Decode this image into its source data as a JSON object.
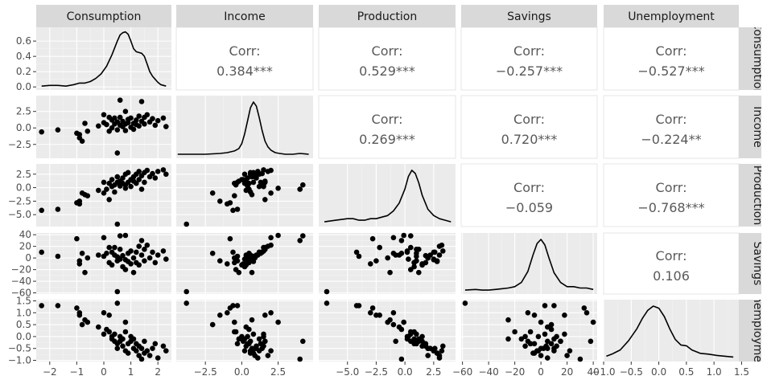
{
  "chart_data": {
    "type": "scatter-matrix",
    "variables": [
      "Consumption",
      "Income",
      "Production",
      "Savings",
      "Unemployment"
    ],
    "column_ranges": [
      [
        -2.5,
        2.5
      ],
      [
        -4.5,
        4.9
      ],
      [
        -7.5,
        4.4
      ],
      [
        -61,
        43
      ],
      [
        -1.0,
        1.45
      ]
    ],
    "row_ranges": [
      [
        -0.04,
        0.78
      ],
      [
        -4.6,
        4.9
      ],
      [
        -7.2,
        4.4
      ],
      [
        -62,
        43
      ],
      [
        -1.05,
        1.55
      ]
    ],
    "x_ticks": [
      {
        "values": [
          -2,
          -1,
          0,
          1,
          2
        ],
        "labels": [
          "−2",
          "−1",
          "0",
          "1",
          "2"
        ]
      },
      {
        "values": [
          -2.5,
          0,
          2.5
        ],
        "labels": [
          "−2.5",
          "0.0",
          "2.5"
        ]
      },
      {
        "values": [
          -5,
          -2.5,
          0,
          2.5
        ],
        "labels": [
          "−5.0",
          "−2.5",
          "0.0",
          "2.5"
        ]
      },
      {
        "values": [
          -60,
          -40,
          -20,
          0,
          20,
          40
        ],
        "labels": [
          "−60",
          "−40",
          "−20",
          "0",
          "20",
          "40"
        ]
      },
      {
        "values": [
          -1,
          -0.5,
          0,
          0.5,
          1,
          1.5
        ],
        "labels": [
          "−1.0",
          "−0.5",
          "0.0",
          "0.5",
          "1.0",
          "1.5"
        ]
      }
    ],
    "y_ticks": [
      {
        "values": [
          0,
          0.2,
          0.4,
          0.6
        ],
        "labels": [
          "0.0",
          "0.2",
          "0.4",
          "0.6"
        ]
      },
      {
        "values": [
          -2.5,
          0,
          2.5
        ],
        "labels": [
          "−2.5",
          "0.0",
          "2.5"
        ]
      },
      {
        "values": [
          -5,
          -2.5,
          0,
          2.5
        ],
        "labels": [
          "−5.0",
          "−2.5",
          "0.0",
          "2.5"
        ]
      },
      {
        "values": [
          -60,
          -40,
          -20,
          0,
          20,
          40
        ],
        "labels": [
          "−60",
          "−40",
          "−20",
          "0",
          "20",
          "40"
        ]
      },
      {
        "values": [
          -1,
          -0.5,
          0,
          0.5,
          1,
          1.5
        ],
        "labels": [
          "−1.0",
          "−0.5",
          "0.0",
          "0.5",
          "1.0",
          "1.5"
        ]
      }
    ],
    "correlations": [
      {
        "row": 0,
        "col": 1,
        "label": "Corr:",
        "value": "0.384***"
      },
      {
        "row": 0,
        "col": 2,
        "label": "Corr:",
        "value": "0.529***"
      },
      {
        "row": 0,
        "col": 3,
        "label": "Corr:",
        "value": "−0.257***"
      },
      {
        "row": 0,
        "col": 4,
        "label": "Corr:",
        "value": "−0.527***"
      },
      {
        "row": 1,
        "col": 2,
        "label": "Corr:",
        "value": "0.269***"
      },
      {
        "row": 1,
        "col": 3,
        "label": "Corr:",
        "value": "0.720***"
      },
      {
        "row": 1,
        "col": 4,
        "label": "Corr:",
        "value": "−0.224**"
      },
      {
        "row": 2,
        "col": 3,
        "label": "Corr:",
        "value": "−0.059"
      },
      {
        "row": 2,
        "col": 4,
        "label": "Corr:",
        "value": "−0.768***"
      },
      {
        "row": 3,
        "col": 4,
        "label": "Corr:",
        "value": "0.106"
      }
    ],
    "densities": [
      {
        "var": 0,
        "x": [
          -2.3,
          -2.0,
          -1.7,
          -1.4,
          -1.1,
          -0.9,
          -0.7,
          -0.5,
          -0.3,
          -0.1,
          0.1,
          0.3,
          0.5,
          0.6,
          0.7,
          0.8,
          0.9,
          1.0,
          1.1,
          1.2,
          1.3,
          1.4,
          1.5,
          1.6,
          1.7,
          1.8,
          1.9,
          2.0,
          2.1,
          2.3
        ],
        "y": [
          0.01,
          0.02,
          0.02,
          0.01,
          0.03,
          0.05,
          0.05,
          0.07,
          0.11,
          0.17,
          0.27,
          0.42,
          0.6,
          0.68,
          0.71,
          0.72,
          0.69,
          0.6,
          0.5,
          0.46,
          0.45,
          0.44,
          0.4,
          0.3,
          0.2,
          0.14,
          0.1,
          0.06,
          0.03,
          0.01
        ]
      },
      {
        "var": 1,
        "x": [
          -4.4,
          -3.5,
          -2.5,
          -1.5,
          -1.0,
          -0.5,
          -0.2,
          0.0,
          0.2,
          0.4,
          0.6,
          0.8,
          1.0,
          1.2,
          1.4,
          1.6,
          1.8,
          2.0,
          2.3,
          2.6,
          3.0,
          3.5,
          4.0,
          4.6
        ],
        "y": [
          0.01,
          0.01,
          0.01,
          0.02,
          0.03,
          0.05,
          0.08,
          0.14,
          0.26,
          0.42,
          0.58,
          0.65,
          0.6,
          0.46,
          0.3,
          0.17,
          0.1,
          0.06,
          0.03,
          0.02,
          0.01,
          0.01,
          0.02,
          0.01
        ]
      },
      {
        "var": 2,
        "x": [
          -7.0,
          -6.0,
          -5.0,
          -4.5,
          -4.0,
          -3.5,
          -3.0,
          -2.5,
          -2.0,
          -1.5,
          -1.0,
          -0.5,
          0.0,
          0.3,
          0.6,
          0.9,
          1.2,
          1.5,
          2.0,
          2.5,
          3.0,
          3.5,
          4.0
        ],
        "y": [
          0.01,
          0.02,
          0.03,
          0.03,
          0.02,
          0.02,
          0.03,
          0.03,
          0.04,
          0.05,
          0.08,
          0.13,
          0.22,
          0.3,
          0.34,
          0.32,
          0.26,
          0.18,
          0.09,
          0.05,
          0.03,
          0.02,
          0.01
        ]
      },
      {
        "var": 3,
        "x": [
          -58,
          -50,
          -45,
          -40,
          -35,
          -30,
          -25,
          -20,
          -15,
          -10,
          -6,
          -3,
          0,
          3,
          6,
          10,
          15,
          20,
          25,
          30,
          35,
          40
        ],
        "y": [
          0.0005,
          0.001,
          0.0005,
          0.0005,
          0.001,
          0.0015,
          0.002,
          0.003,
          0.006,
          0.014,
          0.026,
          0.034,
          0.037,
          0.033,
          0.024,
          0.013,
          0.006,
          0.003,
          0.003,
          0.002,
          0.002,
          0.001
        ]
      },
      {
        "var": 4,
        "x": [
          -0.95,
          -0.85,
          -0.7,
          -0.55,
          -0.4,
          -0.3,
          -0.2,
          -0.1,
          0.0,
          0.1,
          0.2,
          0.3,
          0.4,
          0.5,
          0.6,
          0.75,
          0.9,
          1.05,
          1.2,
          1.35
        ],
        "y": [
          0.05,
          0.1,
          0.2,
          0.42,
          0.7,
          0.95,
          1.15,
          1.25,
          1.2,
          1.0,
          0.7,
          0.45,
          0.32,
          0.3,
          0.2,
          0.12,
          0.1,
          0.07,
          0.05,
          0.03
        ]
      }
    ],
    "scatter_points": [
      [
        -2.3,
        -0.6,
        -4.2,
        10,
        1.3
      ],
      [
        -1.7,
        -0.3,
        -4.0,
        3,
        1.3
      ],
      [
        -1.0,
        -0.8,
        -2.8,
        33,
        1.2
      ],
      [
        -0.9,
        -1.5,
        -2.5,
        -5,
        0.9
      ],
      [
        -0.8,
        -2.0,
        -1.0,
        8,
        0.5
      ],
      [
        -0.7,
        0.7,
        -1.3,
        -25,
        0.7
      ],
      [
        -0.9,
        -1.0,
        -3.0,
        -10,
        1.0
      ],
      [
        -0.6,
        -0.5,
        -1.5,
        0,
        0.6
      ],
      [
        -0.2,
        0.3,
        -0.5,
        5,
        0.4
      ],
      [
        0.0,
        0.8,
        1.0,
        3,
        0.1
      ],
      [
        0.1,
        0.5,
        -0.3,
        8,
        0.3
      ],
      [
        0.2,
        -0.5,
        0.8,
        -8,
        0.2
      ],
      [
        0.3,
        1.2,
        0.2,
        10,
        -0.1
      ],
      [
        0.3,
        0.0,
        1.5,
        -12,
        0.0
      ],
      [
        0.4,
        0.6,
        -0.8,
        5,
        -0.2
      ],
      [
        0.4,
        1.5,
        0.5,
        18,
        0.1
      ],
      [
        0.5,
        -0.3,
        1.0,
        -5,
        -0.3
      ],
      [
        0.5,
        0.9,
        2.0,
        2,
        -0.5
      ],
      [
        0.6,
        0.4,
        0.3,
        -2,
        0.0
      ],
      [
        0.6,
        1.6,
        1.2,
        15,
        -0.2
      ],
      [
        0.7,
        0.2,
        0.8,
        -15,
        -0.1
      ],
      [
        0.7,
        1.0,
        1.8,
        4,
        -0.4
      ],
      [
        0.8,
        0.6,
        2.5,
        -3,
        -0.6
      ],
      [
        0.8,
        -0.4,
        0.5,
        -20,
        0.2
      ],
      [
        0.9,
        1.3,
        1.0,
        8,
        -0.3
      ],
      [
        0.9,
        0.8,
        2.8,
        -6,
        -0.7
      ],
      [
        1.0,
        0.1,
        1.5,
        -10,
        -0.2
      ],
      [
        1.0,
        1.5,
        0.2,
        12,
        0.0
      ],
      [
        1.1,
        0.7,
        2.0,
        0,
        -0.5
      ],
      [
        1.1,
        -0.2,
        1.2,
        -25,
        -0.1
      ],
      [
        1.2,
        1.2,
        2.5,
        10,
        -0.6
      ],
      [
        1.2,
        0.5,
        0.8,
        -8,
        -0.3
      ],
      [
        1.3,
        1.8,
        3.0,
        20,
        -0.8
      ],
      [
        1.3,
        0.3,
        1.5,
        -12,
        -0.4
      ],
      [
        1.4,
        1.0,
        2.2,
        5,
        -0.5
      ],
      [
        1.5,
        0.6,
        2.8,
        -5,
        -0.7
      ],
      [
        1.5,
        1.6,
        1.0,
        15,
        -0.2
      ],
      [
        1.6,
        2.0,
        3.2,
        22,
        -0.6
      ],
      [
        1.7,
        0.9,
        2.0,
        0,
        -0.8
      ],
      [
        1.8,
        1.4,
        2.6,
        10,
        -0.5
      ],
      [
        1.9,
        0.4,
        1.8,
        -8,
        -0.3
      ],
      [
        2.0,
        1.1,
        3.0,
        5,
        -0.9
      ],
      [
        2.2,
        1.5,
        3.3,
        12,
        -0.4
      ],
      [
        2.3,
        0.2,
        2.5,
        -2,
        -0.6
      ],
      [
        0.5,
        -3.8,
        -6.8,
        -58,
        1.4
      ],
      [
        0.6,
        4.2,
        0.5,
        38,
        -0.2
      ],
      [
        0.0,
        2.0,
        -1.0,
        35,
        1.0
      ],
      [
        1.4,
        4.0,
        -0.3,
        30,
        -1.0
      ],
      [
        0.2,
        1.6,
        -2.2,
        18,
        0.9
      ],
      [
        0.8,
        2.5,
        -0.1,
        40,
        0.6
      ]
    ]
  }
}
